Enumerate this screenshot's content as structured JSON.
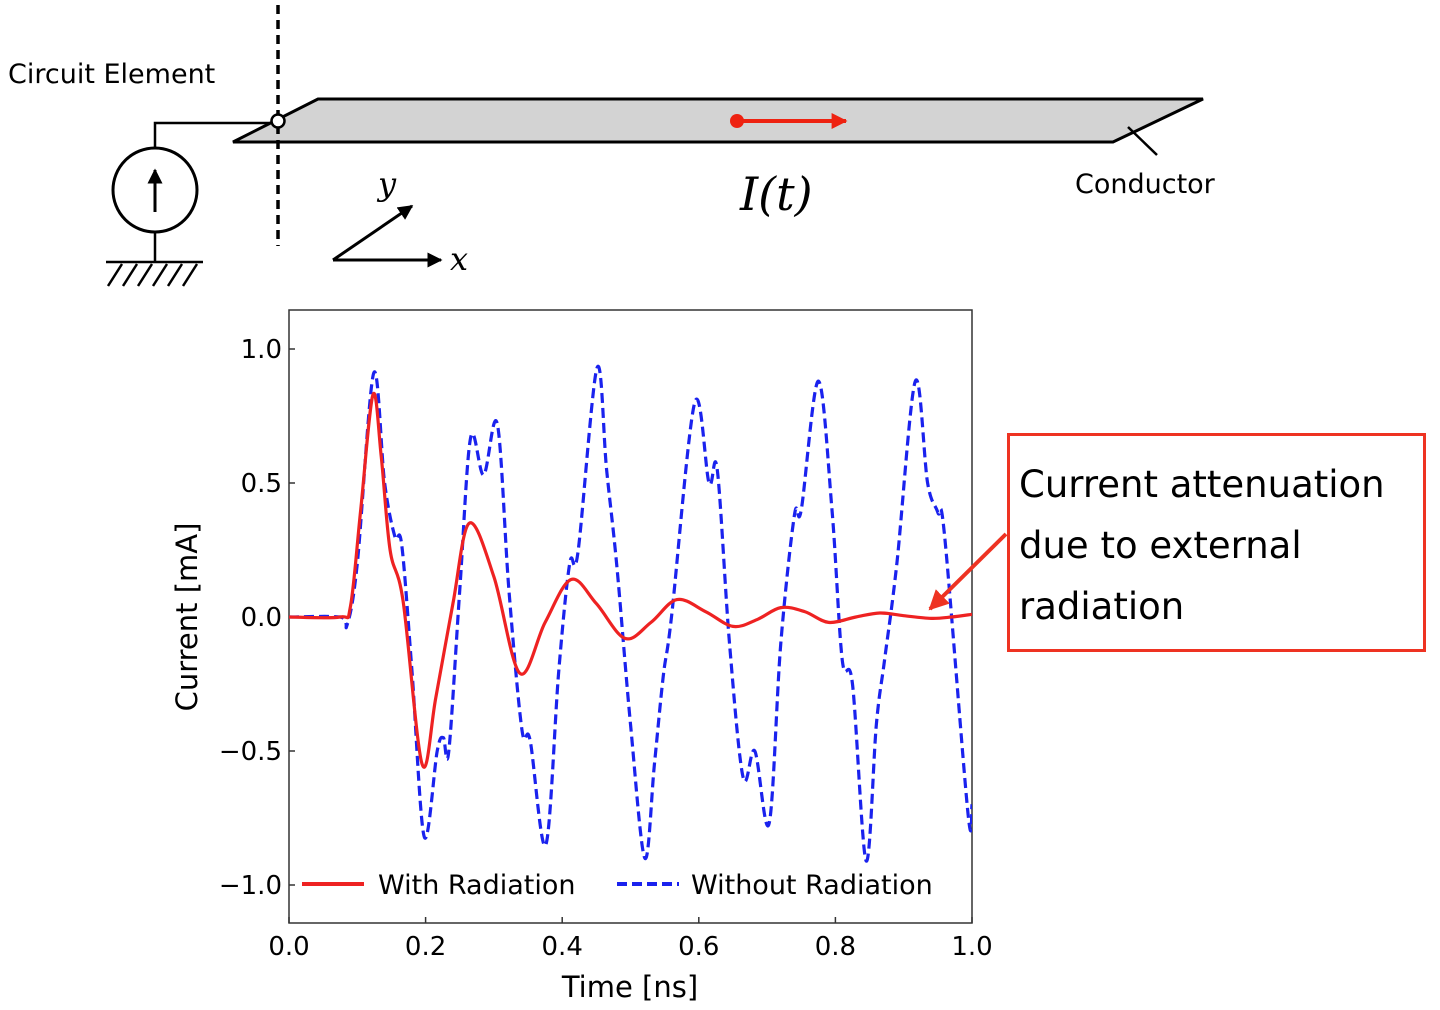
{
  "diagram": {
    "circuit_element_label": "Circuit Element",
    "conductor_label": "Conductor",
    "current_label": "I(t)",
    "axis_x_label": "x",
    "axis_y_label": "y",
    "plate_color": "#d3d3d3",
    "current_arrow_color": "#ee2211"
  },
  "annotation": {
    "text": "Current attenuation due to external radiation",
    "border_color": "#ee3322"
  },
  "chart_data": {
    "type": "line",
    "xlabel": "Time [ns]",
    "ylabel": "Current [mA]",
    "xlim": [
      0.0,
      1.0
    ],
    "ylim": [
      -1.15,
      1.15
    ],
    "xticks": [
      "0.0",
      "0.2",
      "0.4",
      "0.6",
      "0.8",
      "1.0"
    ],
    "yticks": [
      "1.0",
      "0.5",
      "0.0",
      "−0.5",
      "−1.0"
    ],
    "grid": false,
    "legend_position": "bottom",
    "series": [
      {
        "name": "With Radiation",
        "color": "#ee2222",
        "style": "solid",
        "x": [
          0,
          0.075,
          0.09,
          0.105,
          0.123,
          0.135,
          0.148,
          0.167,
          0.195,
          0.215,
          0.24,
          0.264,
          0.3,
          0.338,
          0.375,
          0.413,
          0.45,
          0.492,
          0.53,
          0.568,
          0.61,
          0.65,
          0.685,
          0.72,
          0.755,
          0.79,
          0.83,
          0.865,
          0.9,
          0.94,
          0.97,
          1.0
        ],
        "y": [
          0,
          0,
          0.04,
          0.4,
          0.83,
          0.6,
          0.25,
          0.06,
          -0.55,
          -0.3,
          0.05,
          0.35,
          0.15,
          -0.21,
          -0.02,
          0.14,
          0.05,
          -0.08,
          -0.02,
          0.065,
          0.02,
          -0.035,
          -0.01,
          0.035,
          0.02,
          -0.02,
          0.0,
          0.015,
          0.005,
          -0.005,
          0.0,
          0.01
        ]
      },
      {
        "name": "Without Radiation",
        "color": "#1a22ee",
        "style": "dashed",
        "x": [
          0,
          0.075,
          0.085,
          0.1,
          0.124,
          0.14,
          0.155,
          0.165,
          0.18,
          0.198,
          0.217,
          0.226,
          0.234,
          0.25,
          0.266,
          0.285,
          0.305,
          0.322,
          0.341,
          0.353,
          0.376,
          0.395,
          0.411,
          0.423,
          0.451,
          0.465,
          0.48,
          0.5,
          0.521,
          0.535,
          0.548,
          0.56,
          0.594,
          0.615,
          0.627,
          0.645,
          0.665,
          0.682,
          0.703,
          0.72,
          0.74,
          0.75,
          0.775,
          0.795,
          0.81,
          0.825,
          0.845,
          0.86,
          0.872,
          0.89,
          0.917,
          0.935,
          0.95,
          0.96,
          0.994,
          1.0
        ],
        "y": [
          0,
          0,
          -0.03,
          0.2,
          0.91,
          0.5,
          0.3,
          0.27,
          -0.2,
          -0.82,
          -0.5,
          -0.45,
          -0.5,
          0.1,
          0.67,
          0.53,
          0.72,
          0.1,
          -0.42,
          -0.46,
          -0.85,
          -0.2,
          0.2,
          0.24,
          0.93,
          0.55,
          0.19,
          -0.4,
          -0.9,
          -0.55,
          -0.22,
          0.0,
          0.8,
          0.5,
          0.55,
          -0.1,
          -0.6,
          -0.5,
          -0.77,
          -0.1,
          0.38,
          0.4,
          0.88,
          0.4,
          -0.16,
          -0.25,
          -0.91,
          -0.4,
          -0.16,
          0.2,
          0.88,
          0.5,
          0.39,
          0.3,
          -0.73,
          -0.7
        ]
      }
    ]
  }
}
